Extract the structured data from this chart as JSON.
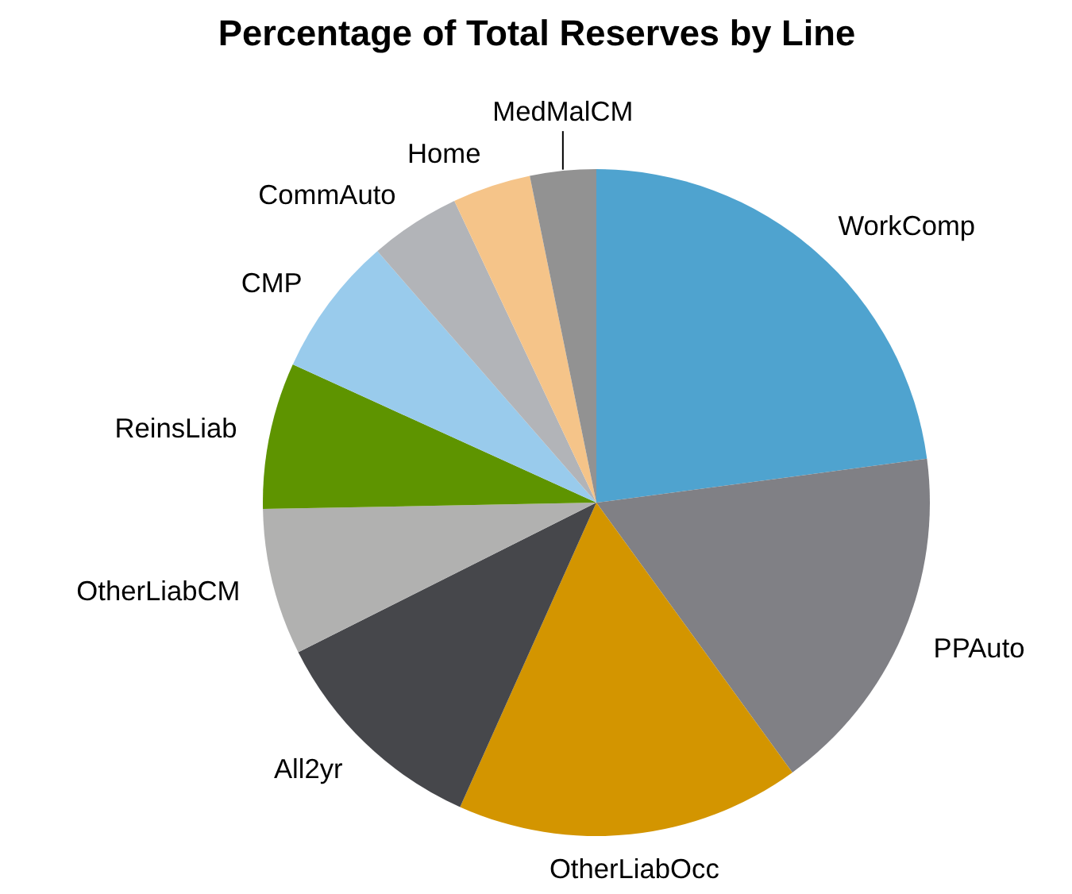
{
  "chart_data": {
    "type": "pie",
    "title": "Percentage of Total Reserves by Line",
    "categories": [
      "WorkComp",
      "PPAuto",
      "OtherLiabOcc",
      "All2yr",
      "OtherLiabCM",
      "ReinsLiab",
      "CMP",
      "CommAuto",
      "Home",
      "MedMalCM"
    ],
    "values": [
      22.9,
      17.1,
      16.7,
      10.9,
      7.1,
      7.1,
      6.8,
      4.4,
      3.8,
      3.2
    ],
    "colors": [
      "#4fa3cf",
      "#808085",
      "#d39500",
      "#46474b",
      "#b1b1b0",
      "#5e9400",
      "#99cbec",
      "#b2b4b8",
      "#f5c489",
      "#929292"
    ],
    "legend": false
  }
}
